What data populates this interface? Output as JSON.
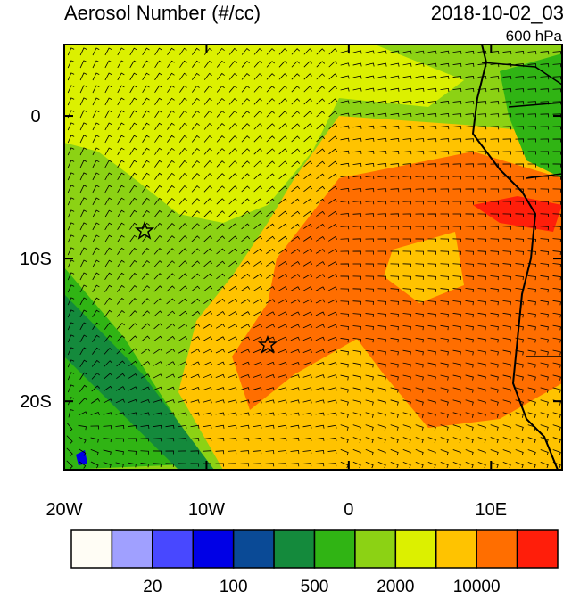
{
  "title": "Aerosol Number (#/cc)",
  "time": "2018-10-02_03",
  "level": "600 hPa",
  "lon_ticks": [
    {
      "value": -20,
      "label": "20W"
    },
    {
      "value": -10,
      "label": "10W"
    },
    {
      "value": 0,
      "label": "0"
    },
    {
      "value": 10,
      "label": "10E"
    }
  ],
  "lat_ticks": [
    {
      "value": 0,
      "label": "0"
    },
    {
      "value": -10,
      "label": "10S"
    },
    {
      "value": -20,
      "label": "20S"
    }
  ],
  "xlim": [
    -20,
    15
  ],
  "ylim": [
    -24.8,
    5
  ],
  "colorbar": {
    "colors": [
      "#fffdf5",
      "#a0a0ff",
      "#4848ff",
      "#0000e6",
      "#0a4a96",
      "#148a3c",
      "#30b414",
      "#8cd214",
      "#dcf000",
      "#ffc300",
      "#ff6e00",
      "#ff1e0a"
    ],
    "labels": [
      "20",
      "100",
      "500",
      "2000",
      "10000"
    ]
  }
}
